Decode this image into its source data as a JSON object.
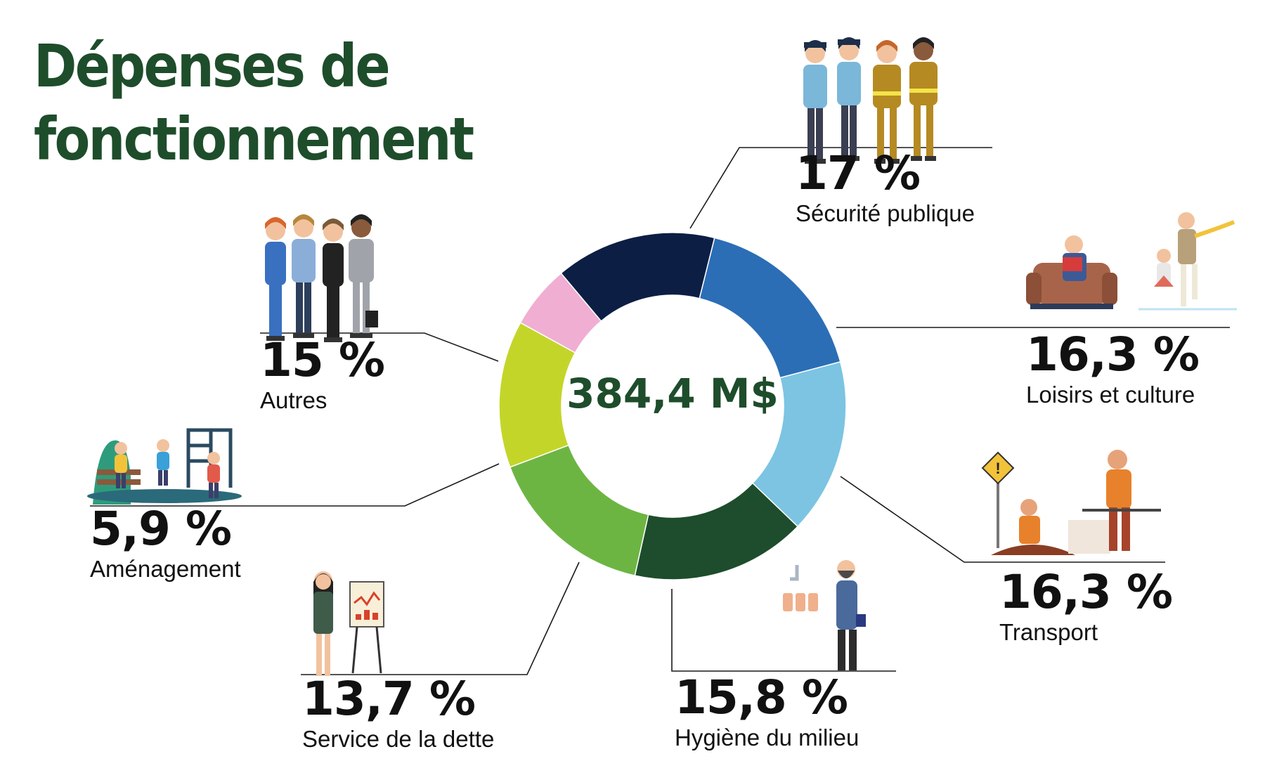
{
  "title": [
    "Dépenses de",
    "fonctionnement"
  ],
  "center_label": "384,4 M$",
  "colors": {
    "title": "#1e4d2b",
    "center": "#1e4d2b",
    "text": "#111111",
    "leader": "#1a1a1a"
  },
  "chart_data": {
    "type": "pie",
    "variant": "donut",
    "total_label": "384,4 M$",
    "slices": [
      {
        "label": "Sécurité publique",
        "value": 17,
        "value_label": "17 %",
        "color": "#2b6eb6",
        "icon": "public-safety-people-icon"
      },
      {
        "label": "Loisirs et culture",
        "value": 16.3,
        "value_label": "16,3 %",
        "color": "#7cc4e2",
        "icon": "leisure-culture-icon"
      },
      {
        "label": "Transport",
        "value": 16.3,
        "value_label": "16,3 %",
        "color": "#1d4d2c",
        "icon": "road-workers-icon"
      },
      {
        "label": "Hygiène du milieu",
        "value": 15.8,
        "value_label": "15,8 %",
        "color": "#6db543",
        "icon": "water-treatment-icon"
      },
      {
        "label": "Service de la dette",
        "value": 13.7,
        "value_label": "13,7 %",
        "color": "#c4d52a",
        "icon": "finance-presentation-icon"
      },
      {
        "label": "Aménagement",
        "value": 5.9,
        "value_label": "5,9 %",
        "color": "#f0aed2",
        "icon": "playground-icon"
      },
      {
        "label": "Autres",
        "value": 15,
        "value_label": "15 %",
        "color": "#0c1e44",
        "icon": "office-workers-icon"
      }
    ]
  }
}
